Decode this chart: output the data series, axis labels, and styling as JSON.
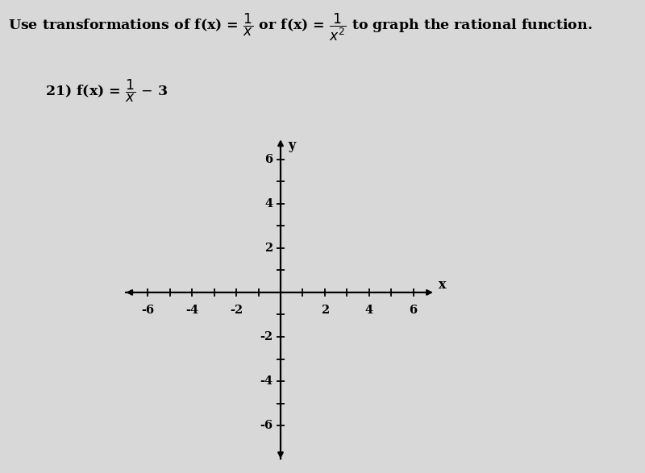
{
  "background_color": "#d8d8d8",
  "header_text": "Use transformations of f(x) = $\\dfrac{1}{x}$ or f(x) = $\\dfrac{1}{x^2}$ to graph the rational function.",
  "problem_label": "21) f(x) = $\\dfrac{1}{x}$ − 3",
  "axis_xlim": [
    -7,
    7
  ],
  "axis_ylim": [
    -7.5,
    7
  ],
  "x_ticks_labeled": [
    -6,
    -4,
    -2,
    2,
    4,
    6
  ],
  "y_ticks_labeled": [
    -6,
    -4,
    -2,
    2,
    4,
    6
  ],
  "x_label": "x",
  "y_label": "y",
  "tick_fontsize": 10.5,
  "axis_linewidth": 1.6,
  "tick_lw": 1.3,
  "arrow_mutation_scale": 10
}
